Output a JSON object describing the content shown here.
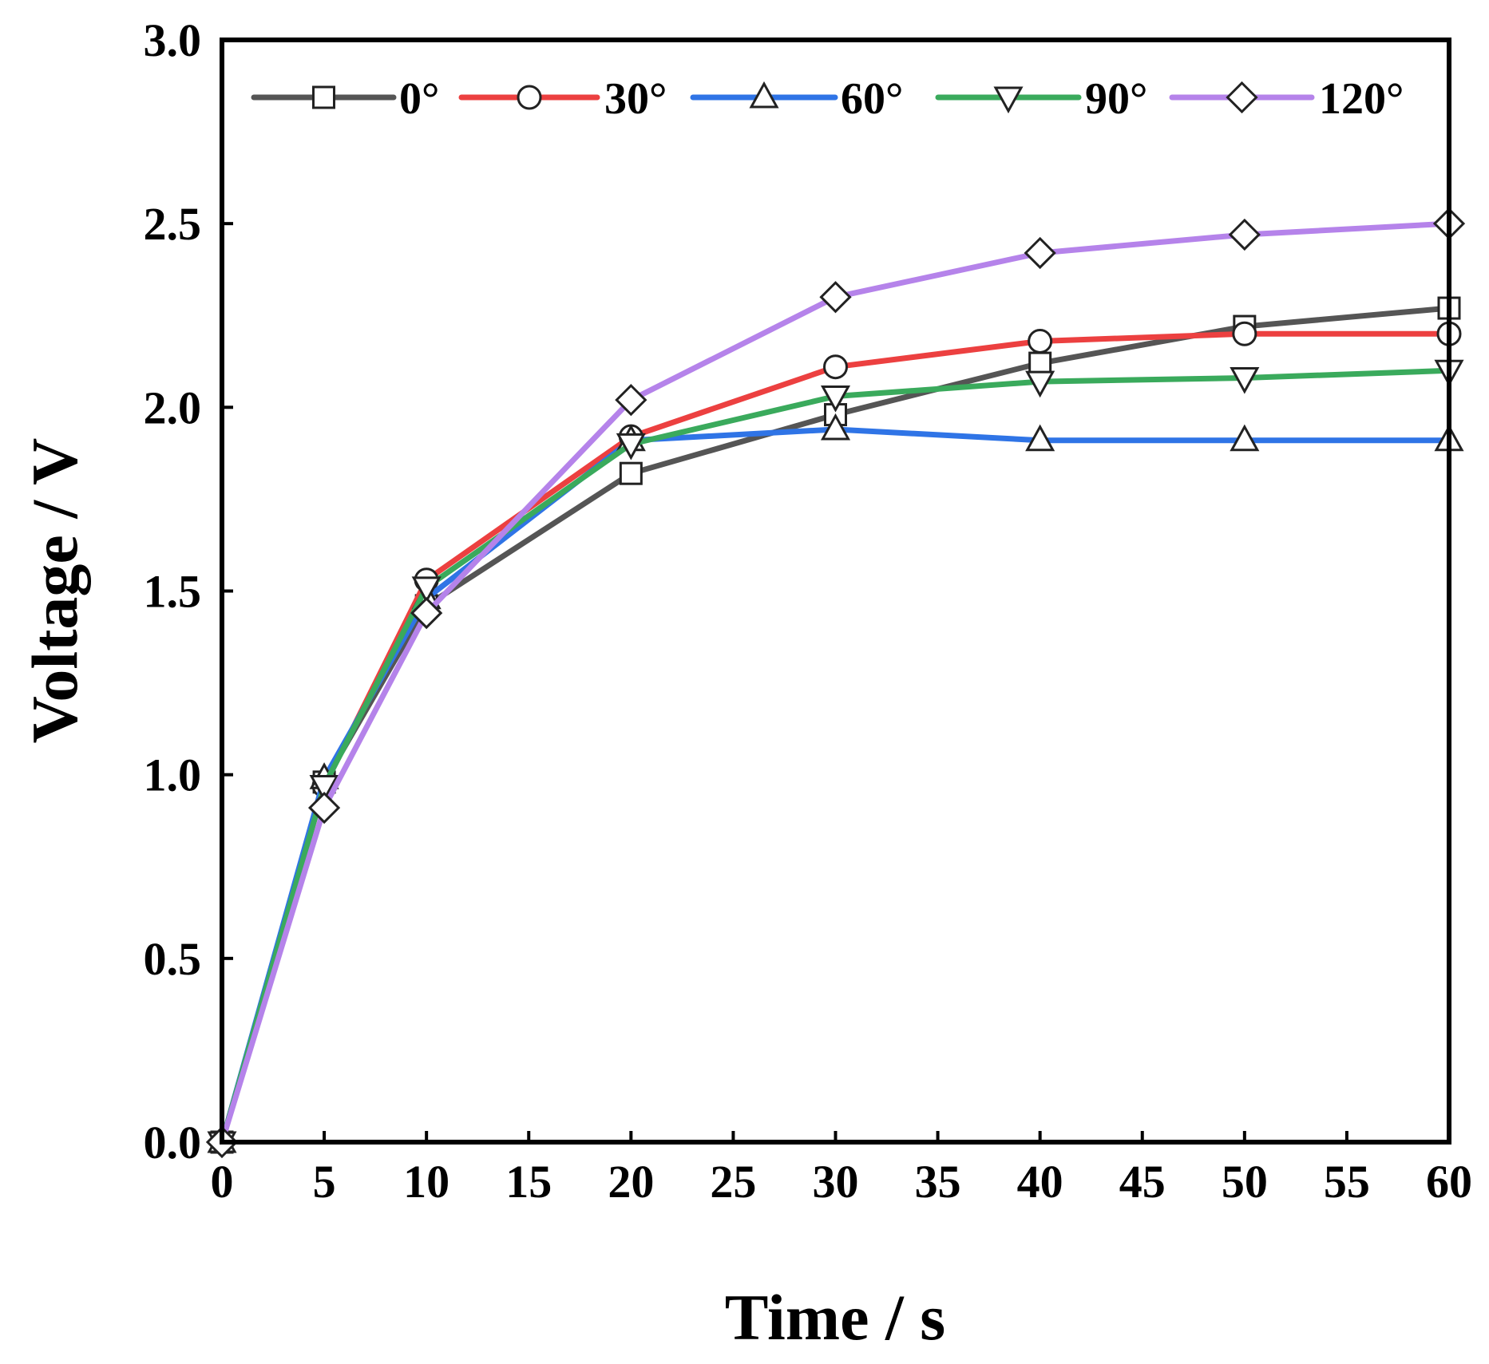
{
  "chart_data": {
    "type": "line",
    "title": "",
    "xlabel": "Time / s",
    "ylabel": "Voltage / V",
    "xlim": [
      0,
      60
    ],
    "ylim": [
      0.0,
      3.0
    ],
    "xticks": [
      "0",
      "5",
      "10",
      "15",
      "20",
      "25",
      "30",
      "35",
      "40",
      "45",
      "50",
      "55",
      "60"
    ],
    "yticks": [
      "0.0",
      "0.5",
      "1.0",
      "1.5",
      "2.0",
      "2.5",
      "3.0"
    ],
    "grid": false,
    "legend_position": "top",
    "x": [
      0,
      5,
      10,
      20,
      30,
      40,
      50,
      60
    ],
    "series": [
      {
        "name": "0°",
        "color": "#555555",
        "marker": "square",
        "values": [
          0,
          0.98,
          1.46,
          1.82,
          1.98,
          2.12,
          2.22,
          2.27
        ]
      },
      {
        "name": "30°",
        "color": "#ec4040",
        "marker": "circle",
        "values": [
          0,
          0.97,
          1.53,
          1.92,
          2.11,
          2.18,
          2.2,
          2.2
        ]
      },
      {
        "name": "60°",
        "color": "#2f74e6",
        "marker": "triangle-up",
        "values": [
          0,
          0.99,
          1.48,
          1.91,
          1.94,
          1.91,
          1.91,
          1.91
        ]
      },
      {
        "name": "90°",
        "color": "#3aaa5c",
        "marker": "triangle-down",
        "values": [
          0,
          0.97,
          1.51,
          1.9,
          2.03,
          2.07,
          2.08,
          2.1
        ]
      },
      {
        "name": "120°",
        "color": "#b583ea",
        "marker": "diamond",
        "values": [
          0,
          0.91,
          1.44,
          2.02,
          2.3,
          2.42,
          2.47,
          2.5
        ]
      }
    ]
  }
}
